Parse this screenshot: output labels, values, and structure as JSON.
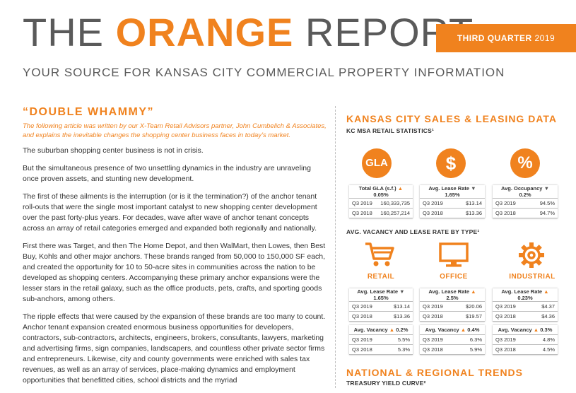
{
  "header": {
    "title_part1": "THE",
    "title_part2": "ORANGE",
    "title_part3": "REPORT",
    "quarter": "THIRD QUARTER",
    "year": "2019",
    "subtitle": "YOUR SOURCE FOR KANSAS CITY COMMERCIAL PROPERTY INFORMATION"
  },
  "article": {
    "title": "“DOUBLE WHAMMY”",
    "intro": "The following article was written by our X-Team Retail Advisors partner, John Cumbelich & Associates, and explains the inevitable changes the shopping center business faces in today’s market.",
    "paragraphs": [
      "The suburban shopping center business is not in crisis.",
      "But the simultaneous presence of two unsettling dynamics in the industry are unraveling once proven assets, and stunting new development.",
      "The first of these ailments is the interruption (or is it the termination?) of the anchor tenant roll-outs that were the single most important catalyst to new shopping center development over the past forty-plus years. For decades, wave after wave of anchor tenant concepts across an array of retail categories emerged and expanded both regionally and nationally.",
      "First there was Target, and then The Home Depot, and then WalMart, then Lowes, then Best Buy, Kohls and other major anchors. These brands ranged from 50,000 to 150,000 SF each, and created the opportunity for 10 to 50-acre sites in communities across the nation to be developed as shopping centers. Accompanying these primary anchor expansions were the lesser stars in the retail galaxy, such as the office products, pets, crafts, and sporting goods sub-anchors, among others.",
      "The ripple effects that were caused by the expansion of these brands are too many to count. Anchor tenant expansion created enormous business opportunities for developers, contractors, sub-contractors, architects, engineers, brokers, consultants, lawyers, marketing and advertising firms, sign companies, landscapers, and countless other private sector firms and entrepreneurs. Likewise, city and county governments were enriched with sales tax revenues, as well as an array of services, place-making dynamics and employment opportunities that benefitted cities, school districts and the myriad"
    ]
  },
  "data_section": {
    "title": "KANSAS CITY SALES & LEASING DATA",
    "msa_title": "KC MSA RETAIL STATISTICS¹",
    "icons": {
      "gla": "GLA",
      "dollar": "$",
      "percent": "%"
    },
    "gla_table": {
      "header": "Total GLA (s.f.)",
      "arrow": "▲",
      "change": "0.05%",
      "rows": [
        [
          "Q3 2019",
          "160,333,735"
        ],
        [
          "Q3 2018",
          "160,257,214"
        ]
      ]
    },
    "lease_table": {
      "header": "Avg. Lease Rate",
      "arrow": "▼",
      "change": "1.65%",
      "rows": [
        [
          "Q3 2019",
          "$13.14"
        ],
        [
          "Q3 2018",
          "$13.36"
        ]
      ]
    },
    "occ_table": {
      "header": "Avg. Occupancy",
      "arrow": "▼",
      "change": "0.2%",
      "rows": [
        [
          "Q3 2019",
          "94.5%"
        ],
        [
          "Q3 2018",
          "94.7%"
        ]
      ]
    },
    "type_title": "AVG. VACANCY AND LEASE RATE BY TYPE¹",
    "types": [
      {
        "label": "RETAIL",
        "icon": "cart-icon",
        "lease": {
          "header": "Avg. Lease Rate",
          "arrow": "▼",
          "change": "1.65%",
          "rows": [
            [
              "Q3 2019",
              "$13.14"
            ],
            [
              "Q3 2018",
              "$13.36"
            ]
          ]
        },
        "vacancy": {
          "header": "Avg. Vacancy",
          "arrow": "▲",
          "change": "0.2%",
          "rows": [
            [
              "Q3 2019",
              "5.5%"
            ],
            [
              "Q3 2018",
              "5.3%"
            ]
          ]
        }
      },
      {
        "label": "OFFICE",
        "icon": "monitor-icon",
        "lease": {
          "header": "Avg. Lease Rate",
          "arrow": "▲",
          "change": "2.5%",
          "rows": [
            [
              "Q3 2019",
              "$20.06"
            ],
            [
              "Q3 2018",
              "$19.57"
            ]
          ]
        },
        "vacancy": {
          "header": "Avg. Vacancy",
          "arrow": "▲",
          "change": "0.4%",
          "rows": [
            [
              "Q3 2019",
              "6.3%"
            ],
            [
              "Q3 2018",
              "5.9%"
            ]
          ]
        }
      },
      {
        "label": "INDUSTRIAL",
        "icon": "gear-icon",
        "lease": {
          "header": "Avg. Lease Rate",
          "arrow": "▲",
          "change": "0.23%",
          "rows": [
            [
              "Q3 2019",
              "$4.37"
            ],
            [
              "Q3 2018",
              "$4.36"
            ]
          ]
        },
        "vacancy": {
          "header": "Avg. Vacancy",
          "arrow": "▲",
          "change": "0.3%",
          "rows": [
            [
              "Q3 2019",
              "4.8%"
            ],
            [
              "Q3 2018",
              "4.5%"
            ]
          ]
        }
      }
    ],
    "trends_title": "NATIONAL & REGIONAL TRENDS",
    "treasury_title": "TREASURY YIELD CURVE²"
  },
  "colors": {
    "accent": "#f0821e",
    "text": "#333333",
    "title_gray": "#5a5a5a"
  }
}
